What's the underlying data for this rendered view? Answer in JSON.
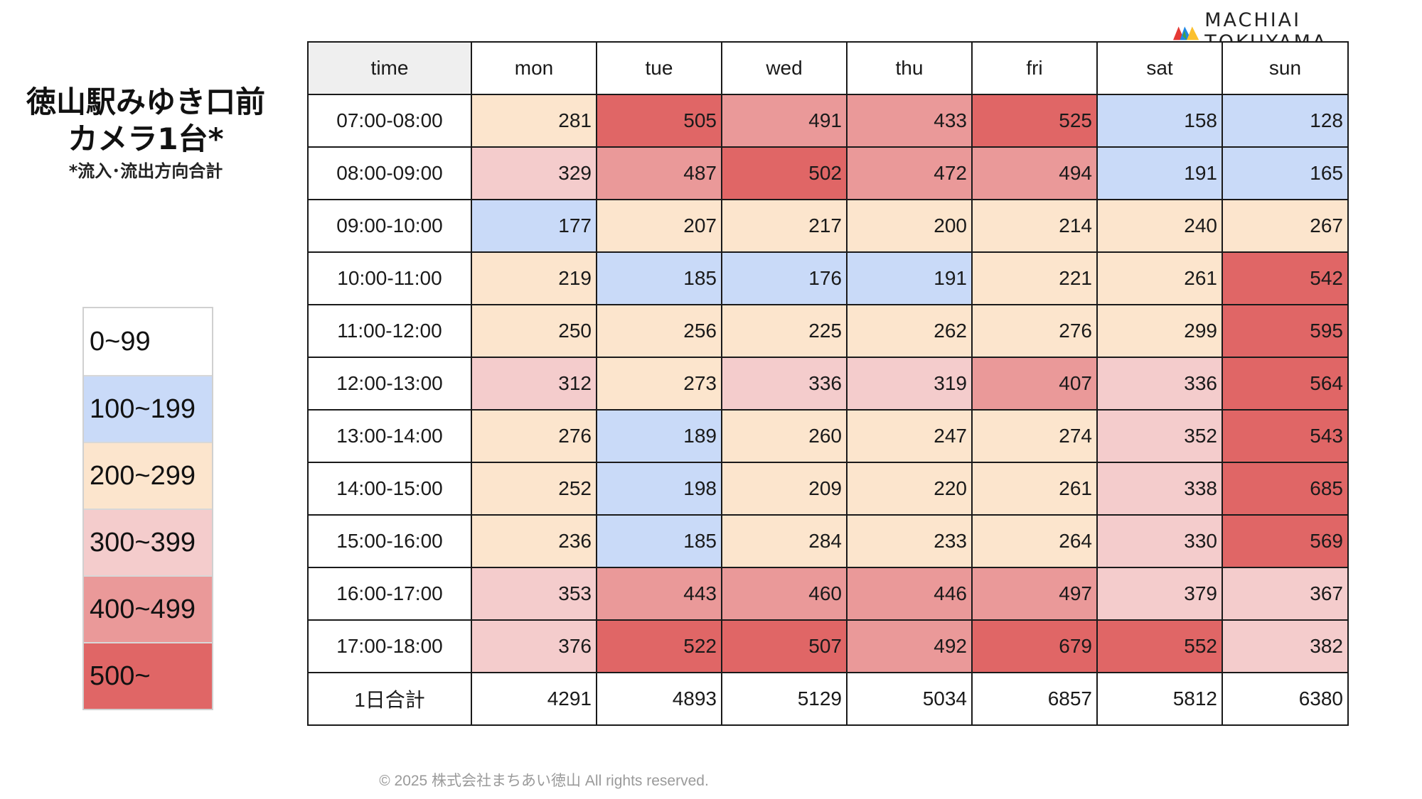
{
  "title": {
    "line1": "徳山駅みゆき口前",
    "line2": "カメラ1台*",
    "note": "*流入･流出方向合計"
  },
  "logo": {
    "text": "MACHIAI TOKUYAMA",
    "icon": "brand-mark-icon"
  },
  "legend": [
    {
      "label": "0~99",
      "color": "#ffffff"
    },
    {
      "label": "100~199",
      "color": "#c9daf8"
    },
    {
      "label": "200~299",
      "color": "#fce5cd"
    },
    {
      "label": "300~399",
      "color": "#f4cccc"
    },
    {
      "label": "400~499",
      "color": "#ea9999"
    },
    {
      "label": "500~",
      "color": "#e06666"
    }
  ],
  "footer": "© 2025 株式会社まちあい徳山  All rights reserved.",
  "chart_data": {
    "type": "heatmap",
    "corner_label": "time",
    "columns": [
      "mon",
      "tue",
      "wed",
      "thu",
      "fri",
      "sat",
      "sun"
    ],
    "rows": [
      {
        "label": "07:00-08:00",
        "values": [
          281,
          505,
          491,
          433,
          525,
          158,
          128
        ]
      },
      {
        "label": "08:00-09:00",
        "values": [
          329,
          487,
          502,
          472,
          494,
          191,
          165
        ]
      },
      {
        "label": "09:00-10:00",
        "values": [
          177,
          207,
          217,
          200,
          214,
          240,
          267
        ]
      },
      {
        "label": "10:00-11:00",
        "values": [
          219,
          185,
          176,
          191,
          221,
          261,
          542
        ]
      },
      {
        "label": "11:00-12:00",
        "values": [
          250,
          256,
          225,
          262,
          276,
          299,
          595
        ]
      },
      {
        "label": "12:00-13:00",
        "values": [
          312,
          273,
          336,
          319,
          407,
          336,
          564
        ]
      },
      {
        "label": "13:00-14:00",
        "values": [
          276,
          189,
          260,
          247,
          274,
          352,
          543
        ]
      },
      {
        "label": "14:00-15:00",
        "values": [
          252,
          198,
          209,
          220,
          261,
          338,
          685
        ]
      },
      {
        "label": "15:00-16:00",
        "values": [
          236,
          185,
          284,
          233,
          264,
          330,
          569
        ]
      },
      {
        "label": "16:00-17:00",
        "values": [
          353,
          443,
          460,
          446,
          497,
          379,
          367
        ]
      },
      {
        "label": "17:00-18:00",
        "values": [
          376,
          522,
          507,
          492,
          679,
          552,
          382
        ]
      }
    ],
    "total": {
      "label": "1日合計",
      "values": [
        4291,
        4893,
        5129,
        5034,
        6857,
        5812,
        6380
      ]
    }
  }
}
